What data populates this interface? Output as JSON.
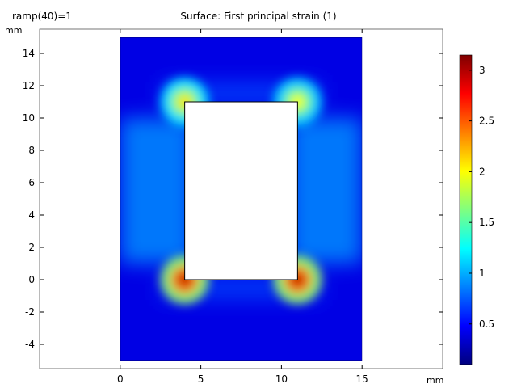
{
  "header": {
    "parameter_label": "ramp(40)=1",
    "plot_title": "Surface: First principal strain (1)"
  },
  "axes": {
    "x_unit": "mm",
    "y_unit": "mm"
  },
  "chart_data": {
    "type": "heatmap",
    "title": "Surface: First principal strain (1)",
    "xlabel": "mm",
    "ylabel": "mm",
    "xlim": [
      -5,
      20
    ],
    "ylim": [
      -5.5,
      15.5
    ],
    "x_ticks": [
      0,
      5,
      10,
      15
    ],
    "y_ticks": [
      -4,
      -2,
      0,
      2,
      4,
      6,
      8,
      10,
      12,
      14
    ],
    "domain": {
      "x": [
        0,
        15
      ],
      "y": [
        -5,
        15
      ]
    },
    "hole": {
      "x": [
        4,
        11
      ],
      "y": [
        0,
        11
      ]
    },
    "colorbar": {
      "range": [
        0.1,
        3.15
      ],
      "ticks": [
        0.5,
        1,
        1.5,
        2,
        2.5,
        3
      ],
      "colormap": "jet"
    },
    "hotspots": [
      {
        "x": 4,
        "y": 0,
        "value": 3.0
      },
      {
        "x": 11,
        "y": 0,
        "value": 3.0
      },
      {
        "x": 4,
        "y": 11,
        "value": 2.1
      },
      {
        "x": 11,
        "y": 11,
        "value": 2.0
      }
    ],
    "background_value": 0.4,
    "side_band_value": 0.9,
    "grid": false,
    "legend": "right"
  }
}
